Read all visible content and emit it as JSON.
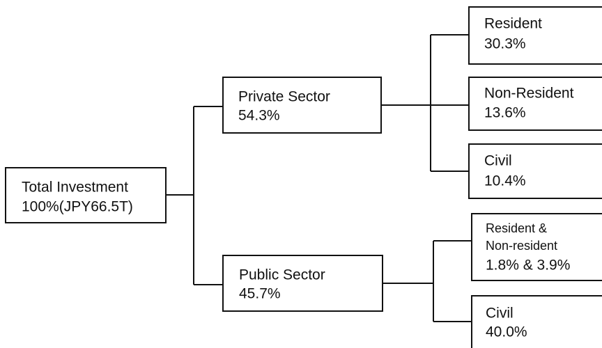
{
  "nodes": [
    {
      "lines": [
        "Total Investment",
        "100%(JPY66.5T)"
      ]
    },
    {
      "lines": [
        "Private Sector",
        "54.3%"
      ]
    },
    {
      "lines": [
        "Public Sector",
        "45.7%"
      ]
    },
    {
      "lines": [
        "Resident",
        "30.3%"
      ]
    },
    {
      "lines": [
        "Non-Resident",
        "13.6%"
      ]
    },
    {
      "lines": [
        "Civil",
        "10.4%"
      ]
    },
    {
      "lines": [
        "Resident &",
        "Non-resident",
        "1.8% & 3.9%"
      ]
    },
    {
      "lines": [
        "Civil",
        "40.0%"
      ]
    }
  ]
}
